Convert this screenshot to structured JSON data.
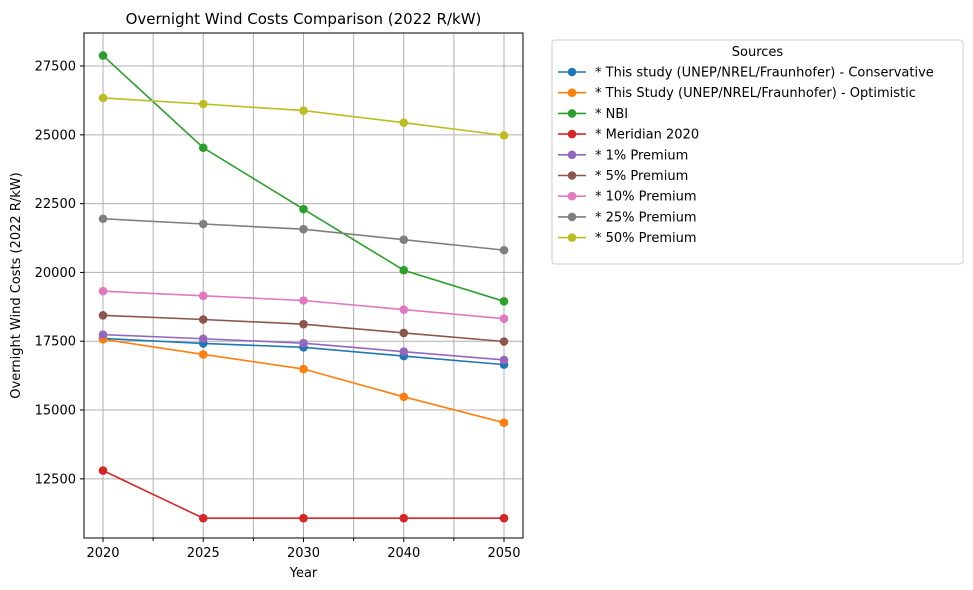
{
  "chart_data": {
    "type": "line",
    "title": "Overnight Wind Costs Comparison (2022 R/kW)",
    "xlabel": "Year",
    "ylabel": "Overnight Wind Costs (2022 R/kW)",
    "categories": [
      "2020",
      "2025",
      "2030",
      "2040",
      "2050"
    ],
    "yticks": [
      "12500",
      "15000",
      "17500",
      "20000",
      "22500",
      "25000",
      "27500"
    ],
    "ylim": [
      10350,
      28700
    ],
    "grid": true,
    "legend": {
      "title": "Sources",
      "placement": "outside right"
    },
    "series": [
      {
        "name": "* This study (UNEP/NREL/Fraunhofer) - Conservative",
        "color": "#1f77b4",
        "values": [
          17600,
          17420,
          17280,
          16960,
          16650
        ]
      },
      {
        "name": "* This Study (UNEP/NREL/Fraunhofer) - Optimistic",
        "color": "#ff7f0e",
        "values": [
          17570,
          17020,
          16490,
          15480,
          14540
        ]
      },
      {
        "name": "* NBI",
        "color": "#2ca02c",
        "values": [
          27880,
          24530,
          22300,
          20080,
          18950
        ]
      },
      {
        "name": "* Meridian 2020",
        "color": "#d62728",
        "values": [
          12800,
          11070,
          11070,
          11070,
          11070
        ]
      },
      {
        "name": "* 1% Premium",
        "color": "#9467bd",
        "values": [
          17740,
          17590,
          17430,
          17120,
          16820
        ]
      },
      {
        "name": "* 5% Premium",
        "color": "#8c564b",
        "values": [
          18440,
          18290,
          18120,
          17800,
          17490
        ]
      },
      {
        "name": "* 10% Premium",
        "color": "#e377c2",
        "values": [
          19320,
          19150,
          18980,
          18650,
          18320
        ]
      },
      {
        "name": "* 25% Premium",
        "color": "#7f7f7f",
        "values": [
          21950,
          21760,
          21570,
          21190,
          20810
        ]
      },
      {
        "name": "* 50% Premium",
        "color": "#bcbd22",
        "values": [
          26340,
          26120,
          25880,
          25440,
          24980
        ]
      }
    ]
  }
}
